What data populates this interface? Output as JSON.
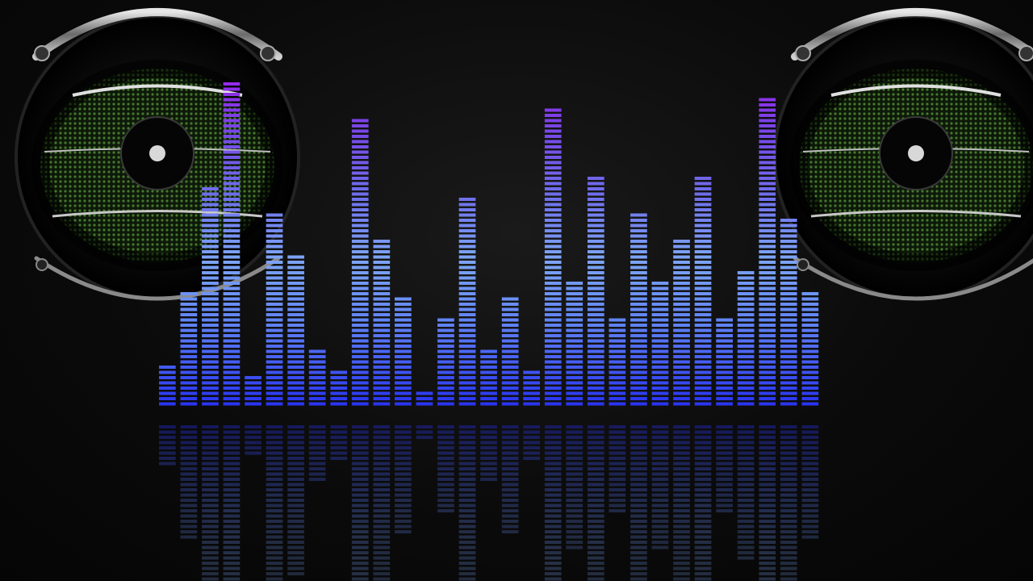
{
  "scene": {
    "description_colors": {
      "background": "#0b0b0b",
      "bar_top": "#8a2be2",
      "bar_mid": "#7a9cf0",
      "bar_bottom": "#2b3cf0",
      "speaker_mesh": "#3f7a2a",
      "speaker_rim": "#c8c8c8"
    }
  },
  "equalizer": {
    "levels": [
      0.13,
      0.36,
      0.67,
      1.0,
      0.09,
      0.59,
      0.46,
      0.17,
      0.11,
      0.89,
      0.51,
      0.33,
      0.05,
      0.28,
      0.64,
      0.18,
      0.34,
      0.12,
      0.91,
      0.39,
      0.71,
      0.27,
      0.59,
      0.38,
      0.51,
      0.7,
      0.28,
      0.41,
      0.95,
      0.57,
      0.35
    ],
    "reflection_opacity": 0.35
  }
}
